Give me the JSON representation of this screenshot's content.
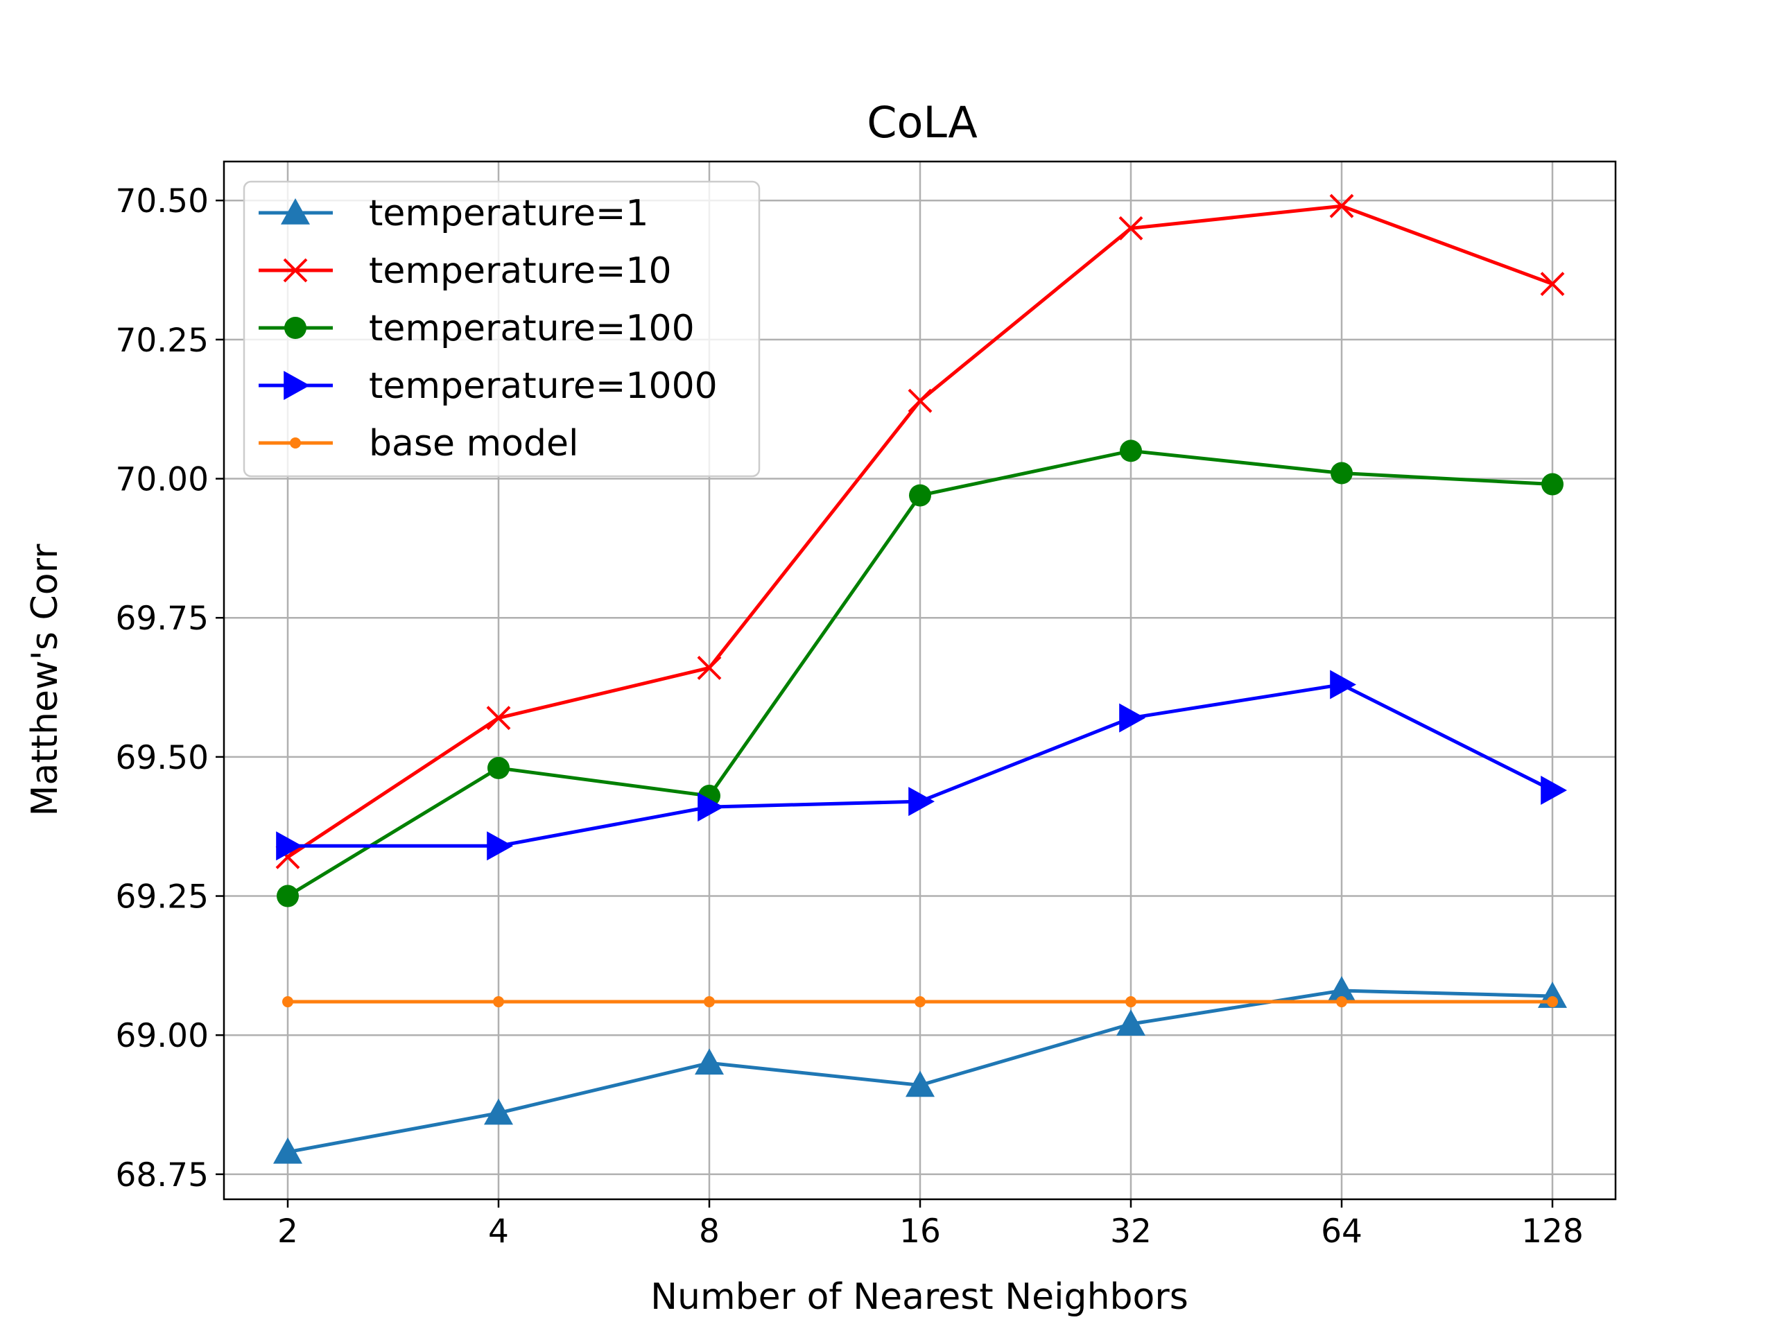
{
  "chart_data": {
    "type": "line",
    "title": "CoLA",
    "xlabel": "Number of Nearest Neighbors",
    "ylabel": "Matthew's Corr",
    "categories": [
      "2",
      "4",
      "8",
      "16",
      "32",
      "64",
      "128"
    ],
    "ylim": [
      68.705,
      70.57
    ],
    "yticks": [
      "68.75",
      "69.00",
      "69.25",
      "69.50",
      "69.75",
      "70.00",
      "70.25",
      "70.50"
    ],
    "grid": true,
    "legend_position": "top-left",
    "series": [
      {
        "name": "temperature=1",
        "color": "#1f77b4",
        "marker": "triangle-up",
        "values": [
          68.79,
          68.86,
          68.95,
          68.91,
          69.02,
          69.08,
          69.07
        ]
      },
      {
        "name": "temperature=10",
        "color": "#ff0000",
        "marker": "x",
        "values": [
          69.32,
          69.57,
          69.66,
          70.14,
          70.45,
          70.49,
          70.35
        ]
      },
      {
        "name": "temperature=100",
        "color": "#008000",
        "marker": "circle",
        "values": [
          69.25,
          69.48,
          69.43,
          69.97,
          70.05,
          70.01,
          69.99
        ]
      },
      {
        "name": "temperature=1000",
        "color": "#0000ff",
        "marker": "triangle-right",
        "values": [
          69.34,
          69.34,
          69.41,
          69.42,
          69.57,
          69.63,
          69.44
        ]
      },
      {
        "name": "base model",
        "color": "#ff7f0e",
        "marker": "dot",
        "values": [
          69.06,
          69.06,
          69.06,
          69.06,
          69.06,
          69.06,
          69.06
        ]
      }
    ]
  }
}
